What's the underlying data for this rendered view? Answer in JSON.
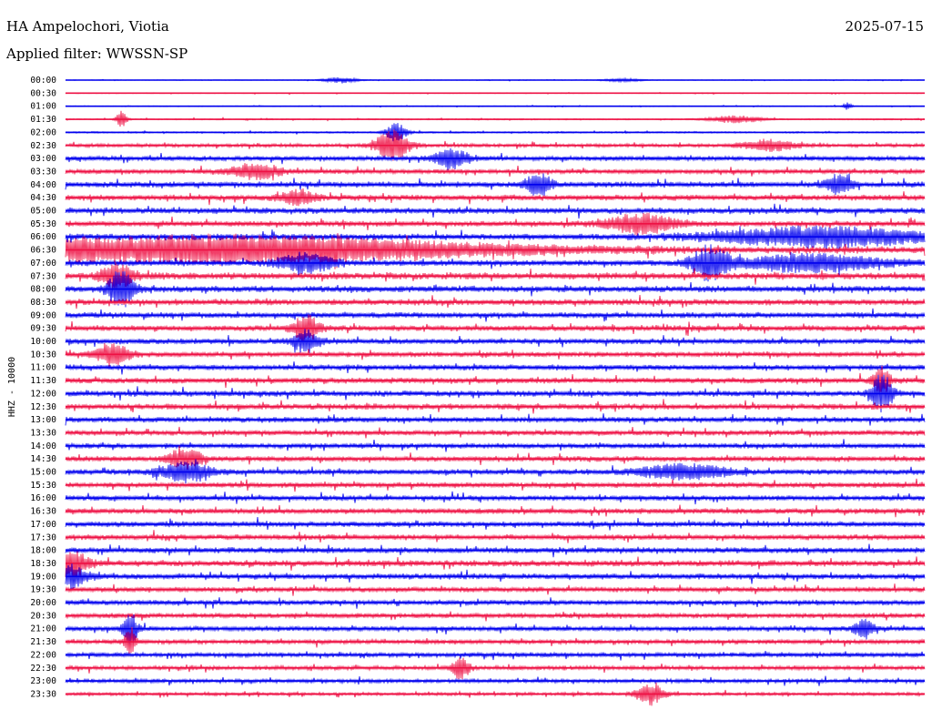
{
  "header": {
    "station": "HA Ampelochori, Viotia",
    "date": "2025-07-15",
    "filter": "Applied filter: WWSSN-SP"
  },
  "chart_data": {
    "type": "line",
    "title": "HA Ampelochori, Viotia",
    "subtitle": "Applied filter: WWSSN-SP",
    "ylabel": "HHZ - 10000",
    "row_labels": [
      "00:00",
      "00:30",
      "01:00",
      "01:30",
      "02:00",
      "02:30",
      "03:00",
      "03:30",
      "04:00",
      "04:30",
      "05:00",
      "05:30",
      "06:00",
      "06:30",
      "07:00",
      "07:30",
      "08:00",
      "08:30",
      "09:00",
      "09:30",
      "10:00",
      "10:30",
      "11:00",
      "11:30",
      "12:00",
      "12:30",
      "13:00",
      "13:30",
      "14:00",
      "14:30",
      "15:00",
      "15:30",
      "16:00",
      "16:30",
      "17:00",
      "17:30",
      "18:00",
      "18:30",
      "19:00",
      "19:30",
      "20:00",
      "20:30",
      "21:00",
      "21:30",
      "22:00",
      "22:30",
      "23:00",
      "23:30"
    ],
    "colors": [
      "#0000ee",
      "#ee1144"
    ],
    "row_noise": [
      0.5,
      0.6,
      0.6,
      0.8,
      1.0,
      2.2,
      3.0,
      2.8,
      3.6,
      3.6,
      3.8,
      3.4,
      3.8,
      4.2,
      3.8,
      4.2,
      4.0,
      3.8,
      3.6,
      3.6,
      3.4,
      3.2,
      3.4,
      3.6,
      3.6,
      3.6,
      3.4,
      3.2,
      3.2,
      3.4,
      3.4,
      3.4,
      3.2,
      3.4,
      3.4,
      3.4,
      3.6,
      3.8,
      3.6,
      3.2,
      3.2,
      3.0,
      3.0,
      2.8,
      2.8,
      2.6,
      2.4,
      2.0
    ],
    "events": [
      {
        "row": 0,
        "x": 0.32,
        "amp": 3,
        "w": 0.02
      },
      {
        "row": 0,
        "x": 0.65,
        "amp": 2,
        "w": 0.02
      },
      {
        "row": 2,
        "x": 0.91,
        "amp": 4,
        "w": 0.005
      },
      {
        "row": 3,
        "x": 0.065,
        "amp": 9,
        "w": 0.006
      },
      {
        "row": 3,
        "x": 0.78,
        "amp": 4,
        "w": 0.03
      },
      {
        "row": 4,
        "x": 0.385,
        "amp": 10,
        "w": 0.012
      },
      {
        "row": 5,
        "x": 0.38,
        "amp": 16,
        "w": 0.02
      },
      {
        "row": 5,
        "x": 0.82,
        "amp": 6,
        "w": 0.03
      },
      {
        "row": 6,
        "x": 0.45,
        "amp": 10,
        "w": 0.02
      },
      {
        "row": 7,
        "x": 0.22,
        "amp": 8,
        "w": 0.03
      },
      {
        "row": 8,
        "x": 0.55,
        "amp": 12,
        "w": 0.015
      },
      {
        "row": 8,
        "x": 0.9,
        "amp": 10,
        "w": 0.015
      },
      {
        "row": 9,
        "x": 0.27,
        "amp": 8,
        "w": 0.02
      },
      {
        "row": 11,
        "x": 0.67,
        "amp": 10,
        "w": 0.04
      },
      {
        "row": 12,
        "x": 0.88,
        "amp": 10,
        "w": 0.12
      },
      {
        "row": 13,
        "x": 0.18,
        "amp": 14,
        "w": 0.3
      },
      {
        "row": 14,
        "x": 0.28,
        "amp": 10,
        "w": 0.03
      },
      {
        "row": 14,
        "x": 0.75,
        "amp": 18,
        "w": 0.02
      },
      {
        "row": 14,
        "x": 0.87,
        "amp": 9,
        "w": 0.08
      },
      {
        "row": 15,
        "x": 0.06,
        "amp": 12,
        "w": 0.02
      },
      {
        "row": 16,
        "x": 0.065,
        "amp": 20,
        "w": 0.015
      },
      {
        "row": 19,
        "x": 0.28,
        "amp": 14,
        "w": 0.015
      },
      {
        "row": 20,
        "x": 0.28,
        "amp": 12,
        "w": 0.015
      },
      {
        "row": 21,
        "x": 0.055,
        "amp": 10,
        "w": 0.02
      },
      {
        "row": 23,
        "x": 0.95,
        "amp": 14,
        "w": 0.01
      },
      {
        "row": 24,
        "x": 0.95,
        "amp": 22,
        "w": 0.012
      },
      {
        "row": 29,
        "x": 0.14,
        "amp": 10,
        "w": 0.02
      },
      {
        "row": 30,
        "x": 0.14,
        "amp": 10,
        "w": 0.03
      },
      {
        "row": 30,
        "x": 0.72,
        "amp": 8,
        "w": 0.05
      },
      {
        "row": 37,
        "x": 0.005,
        "amp": 14,
        "w": 0.02
      },
      {
        "row": 38,
        "x": 0.005,
        "amp": 12,
        "w": 0.02
      },
      {
        "row": 42,
        "x": 0.075,
        "amp": 20,
        "w": 0.008
      },
      {
        "row": 43,
        "x": 0.075,
        "amp": 16,
        "w": 0.006
      },
      {
        "row": 42,
        "x": 0.93,
        "amp": 10,
        "w": 0.012
      },
      {
        "row": 45,
        "x": 0.46,
        "amp": 12,
        "w": 0.01
      },
      {
        "row": 47,
        "x": 0.68,
        "amp": 12,
        "w": 0.015
      }
    ]
  }
}
